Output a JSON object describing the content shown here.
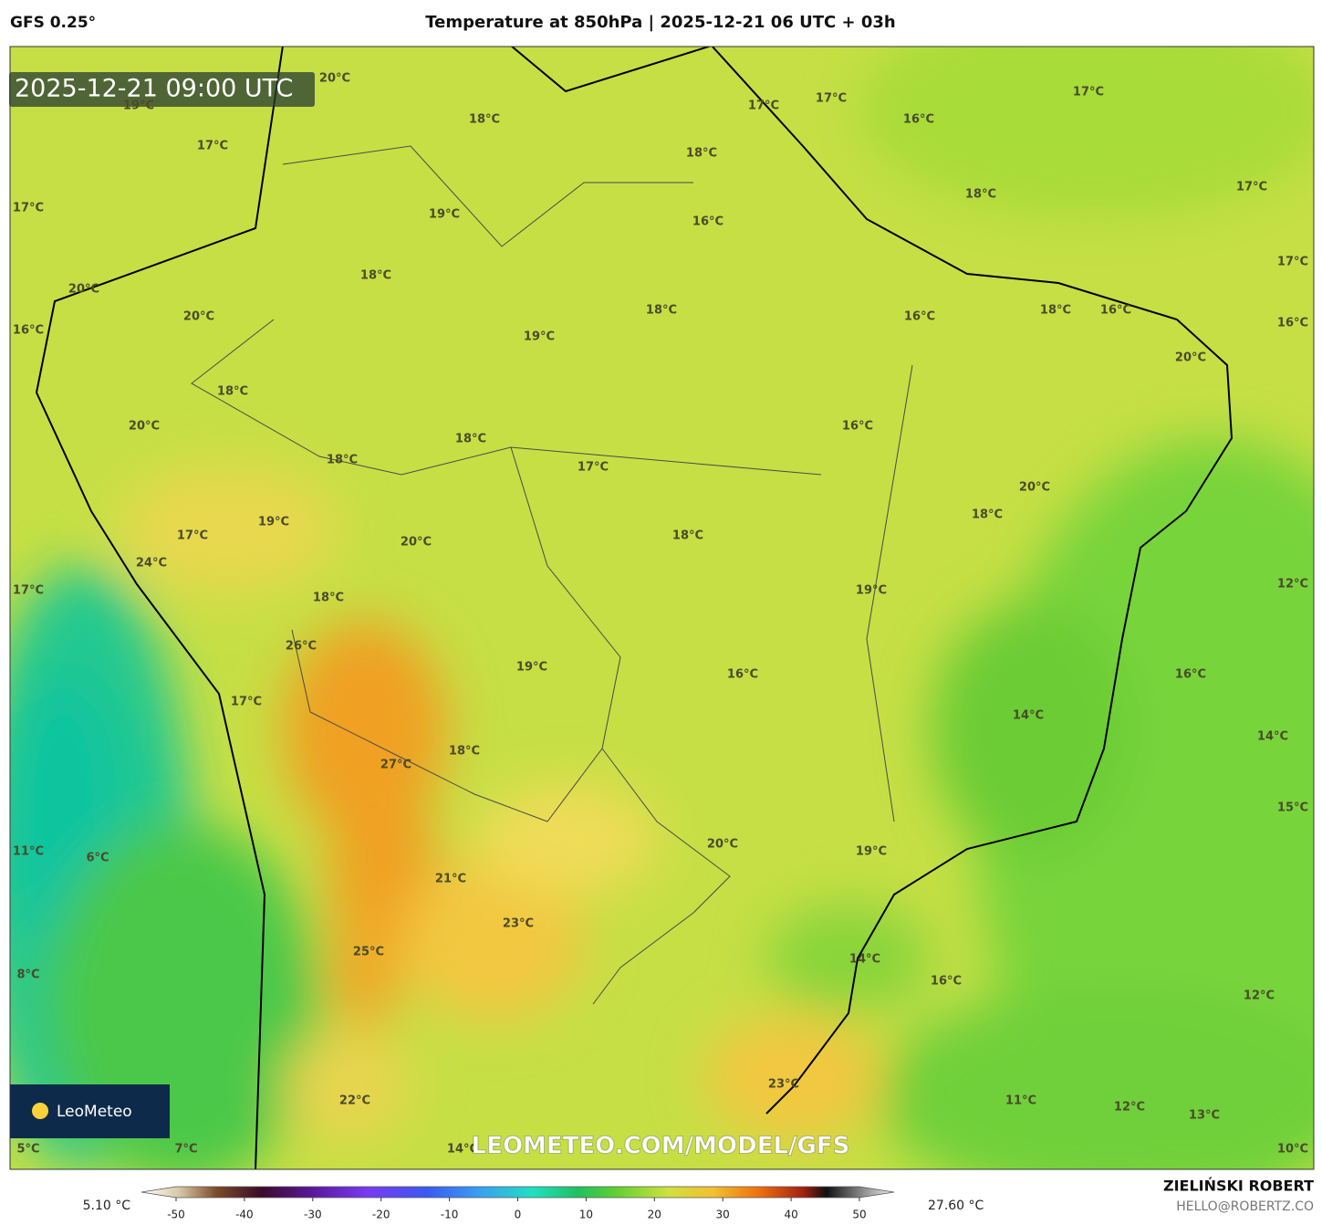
{
  "header": {
    "model": "GFS 0.25°",
    "title": "Temperature at 850hPa | 2025-12-21 06 UTC + 03h"
  },
  "timestamp": "2025-12-21 09:00 UTC",
  "map_labels": [
    "20°C",
    "19°C",
    "18°C",
    "17°C",
    "17°C",
    "17°C",
    "16°C",
    "17°C",
    "18°C",
    "18°C",
    "17°C",
    "17°C",
    "19°C",
    "16°C",
    "17°C",
    "18°C",
    "20°C",
    "18°C",
    "16°C",
    "18°C",
    "16°C",
    "20°C",
    "16°C",
    "16°C",
    "19°C",
    "20°C",
    "18°C",
    "16°C",
    "20°C",
    "18°C",
    "18°C",
    "17°C",
    "20°C",
    "18°C",
    "19°C",
    "18°C",
    "17°C",
    "20°C",
    "24°C",
    "17°C",
    "12°C",
    "18°C",
    "19°C",
    "26°C",
    "19°C",
    "16°C",
    "16°C",
    "17°C",
    "14°C",
    "14°C",
    "18°C",
    "27°C",
    "15°C",
    "20°C",
    "11°C",
    "6°C",
    "19°C",
    "21°C",
    "23°C",
    "25°C",
    "14°C",
    "16°C",
    "8°C",
    "12°C",
    "23°C",
    "22°C",
    "11°C",
    "12°C",
    "13°C",
    "5°C",
    "7°C",
    "14°C",
    "10°C"
  ],
  "watermark": "LEOMETEO.COM/MODEL/GFS",
  "logo": "LeoMeteo",
  "colorbar": {
    "min_label": "5.10 °C",
    "max_label": "27.60 °C",
    "ticks": [
      -50,
      -40,
      -30,
      -20,
      -10,
      0,
      10,
      20,
      30,
      40,
      50
    ]
  },
  "credit": {
    "name": "ZIELIŃSKI ROBERT",
    "email": "HELLO@ROBERTZ.CO"
  }
}
